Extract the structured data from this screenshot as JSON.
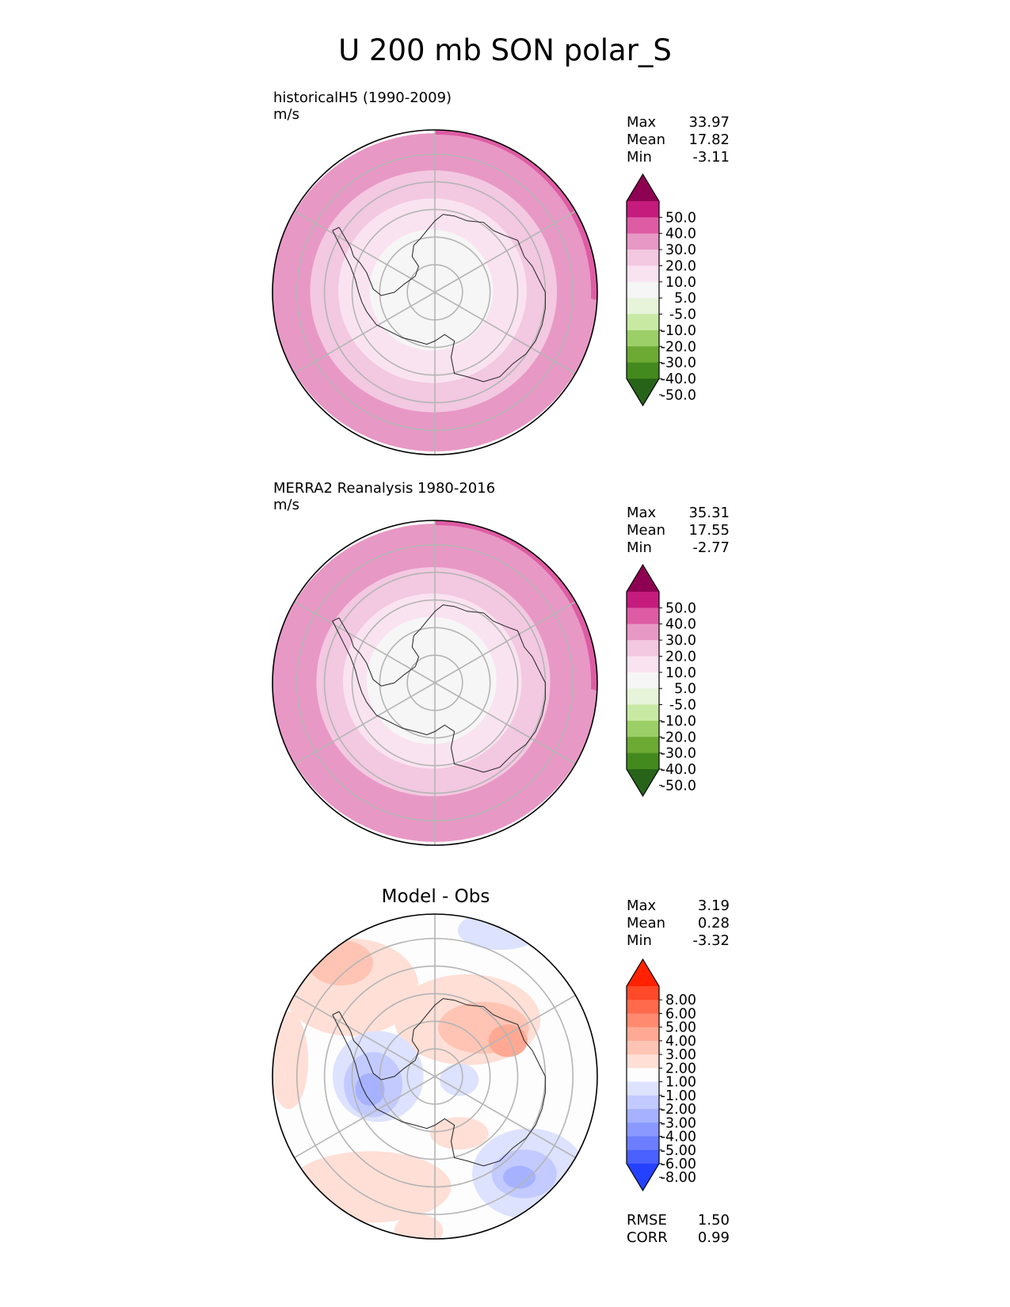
{
  "title": "U 200 mb SON polar_S",
  "panels": [
    {
      "title_line1": "historicalH5 (1990-2009)",
      "title_line2": "m/s",
      "center_title": "",
      "stats": [
        {
          "label": "Max",
          "value": "33.97"
        },
        {
          "label": "Mean",
          "value": "17.82"
        },
        {
          "label": "Min",
          "value": "-3.11"
        }
      ],
      "colorbar": {
        "labels": [
          "50.0",
          "40.0",
          "30.0",
          "20.0",
          "10.0",
          "5.0",
          "-5.0",
          "-10.0",
          "-20.0",
          "-30.0",
          "-40.0",
          "-50.0"
        ],
        "colors": [
          "#8e0152",
          "#c51b7d",
          "#de5ca4",
          "#e898c5",
          "#f3c8e1",
          "#fae3f0",
          "#f6f6f6",
          "#e7f4d9",
          "#c8e9a4",
          "#9ccf67",
          "#6caa34",
          "#44891d",
          "#276419"
        ]
      },
      "map": {
        "rings": [
          {
            "r": 1.0,
            "color": "#e898c5"
          },
          {
            "r": 0.76,
            "color": "#f3c8e1"
          },
          {
            "r": 0.58,
            "color": "#fae3f0"
          },
          {
            "r": 0.38,
            "color": "#f6f6f6"
          }
        ],
        "crescent_color": "#de5ca4",
        "crescent_direction": "upper-right"
      }
    },
    {
      "title_line1": "MERRA2 Reanalysis 1980-2016",
      "title_line2": "m/s",
      "center_title": "",
      "stats": [
        {
          "label": "Max",
          "value": "35.31"
        },
        {
          "label": "Mean",
          "value": "17.55"
        },
        {
          "label": "Min",
          "value": "-2.77"
        }
      ],
      "colorbar": {
        "labels": [
          "50.0",
          "40.0",
          "30.0",
          "20.0",
          "10.0",
          "5.0",
          "-5.0",
          "-10.0",
          "-20.0",
          "-30.0",
          "-40.0",
          "-50.0"
        ],
        "colors": [
          "#8e0152",
          "#c51b7d",
          "#de5ca4",
          "#e898c5",
          "#f3c8e1",
          "#fae3f0",
          "#f6f6f6",
          "#e7f4d9",
          "#c8e9a4",
          "#9ccf67",
          "#6caa34",
          "#44891d",
          "#276419"
        ]
      },
      "map": {
        "rings": [
          {
            "r": 1.0,
            "color": "#e898c5"
          },
          {
            "r": 0.72,
            "color": "#f3c8e1"
          },
          {
            "r": 0.55,
            "color": "#fae3f0"
          },
          {
            "r": 0.4,
            "color": "#f6f6f6"
          }
        ],
        "crescent_color": "#de5ca4",
        "crescent_direction": "upper-right"
      }
    },
    {
      "title_line1": "",
      "title_line2": "",
      "center_title": "Model - Obs",
      "stats": [
        {
          "label": "Max",
          "value": "3.19"
        },
        {
          "label": "Mean",
          "value": "0.28"
        },
        {
          "label": "Min",
          "value": "-3.32"
        }
      ],
      "colorbar": {
        "labels": [
          "8.00",
          "6.00",
          "5.00",
          "4.00",
          "3.00",
          "2.00",
          "1.00",
          "-1.00",
          "-2.00",
          "-3.00",
          "-4.00",
          "-5.00",
          "-6.00",
          "-8.00"
        ],
        "colors": [
          "#ff2200",
          "#ff4a2a",
          "#ff6a4c",
          "#ff8a70",
          "#ffa994",
          "#ffc4b4",
          "#ffdfd6",
          "#fdfdfd",
          "#dde2ff",
          "#c2caff",
          "#a6b2ff",
          "#8a99ff",
          "#6c7eff",
          "#4a60ff",
          "#2441ff"
        ]
      },
      "map": {
        "background": "#fdfdfd"
      },
      "footer_stats": [
        {
          "label": "RMSE",
          "value": "1.50"
        },
        {
          "label": "CORR",
          "value": "0.99"
        }
      ]
    }
  ],
  "chart_data": [
    {
      "type": "heatmap",
      "title": "historicalH5 (1990-2009)",
      "units": "m/s",
      "projection": "south polar stereographic",
      "max": 33.97,
      "mean": 17.82,
      "min": -3.11,
      "levels": [
        -50,
        -40,
        -30,
        -20,
        -10,
        -5,
        5,
        10,
        20,
        30,
        40,
        50
      ]
    },
    {
      "type": "heatmap",
      "title": "MERRA2 Reanalysis 1980-2016",
      "units": "m/s",
      "projection": "south polar stereographic",
      "max": 35.31,
      "mean": 17.55,
      "min": -2.77,
      "levels": [
        -50,
        -40,
        -30,
        -20,
        -10,
        -5,
        5,
        10,
        20,
        30,
        40,
        50
      ]
    },
    {
      "type": "heatmap",
      "title": "Model - Obs",
      "projection": "south polar stereographic",
      "max": 3.19,
      "mean": 0.28,
      "min": -3.32,
      "rmse": 1.5,
      "corr": 0.99,
      "levels": [
        -8,
        -6,
        -5,
        -4,
        -3,
        -2,
        -1,
        1,
        2,
        3,
        4,
        5,
        6,
        8
      ]
    }
  ]
}
